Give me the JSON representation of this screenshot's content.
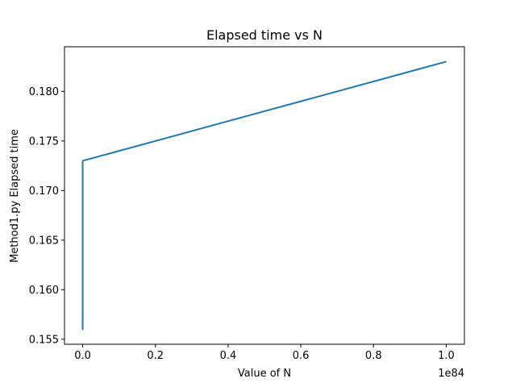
{
  "chart_data": {
    "type": "line",
    "title": "Elapsed time vs N",
    "xlabel": "Value of N",
    "ylabel": "Method1.py Elapsed time",
    "x_offset_text": "1e84",
    "xlim": [
      -0.05,
      1.05
    ],
    "ylim": [
      0.1545,
      0.1845
    ],
    "x_ticks": [
      0.0,
      0.2,
      0.4,
      0.6,
      0.8,
      1.0
    ],
    "x_tick_labels": [
      "0.0",
      "0.2",
      "0.4",
      "0.6",
      "0.8",
      "1.0"
    ],
    "y_ticks": [
      0.155,
      0.16,
      0.165,
      0.17,
      0.175,
      0.18
    ],
    "y_tick_labels": [
      "0.155",
      "0.160",
      "0.165",
      "0.170",
      "0.175",
      "0.180"
    ],
    "grid": false,
    "series": [
      {
        "color": "#1f77b4",
        "x": [
          0,
          0,
          0,
          0,
          0,
          0,
          0,
          1.0
        ],
        "y": [
          0.156,
          0.166,
          0.156,
          0.166,
          0.156,
          0.166,
          0.173,
          0.183
        ]
      }
    ]
  }
}
